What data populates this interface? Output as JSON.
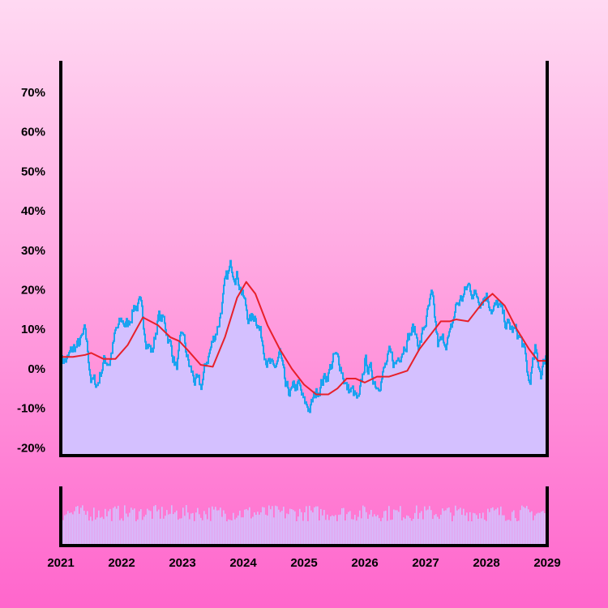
{
  "chart_data": {
    "type": "line",
    "title": "",
    "xlabel": "",
    "ylabel": "",
    "x_ticks": [
      "2021",
      "2022",
      "2023",
      "2024",
      "2025",
      "2026",
      "2027",
      "2028",
      "2029"
    ],
    "x_range": [
      2021,
      2029
    ],
    "y_ticks": [
      "-20%",
      "-10%",
      "0%",
      "10%",
      "20%",
      "30%",
      "40%",
      "50%",
      "60%",
      "70%"
    ],
    "ylim": [
      -22,
      78
    ],
    "grid": false,
    "legend": "none",
    "colors": {
      "background_top": "#ffd9f2",
      "background_bottom": "#ff66cc",
      "area_fill": "#d4c0ff",
      "series_line": "#1aa3f0",
      "moving_average": "#e8202a",
      "volume_bars": "#d4c0ff"
    },
    "series": [
      {
        "role": "values",
        "points": [
          [
            2021.0,
            3
          ],
          [
            2021.1,
            2
          ],
          [
            2021.2,
            5
          ],
          [
            2021.3,
            6
          ],
          [
            2021.4,
            9
          ],
          [
            2021.5,
            -3
          ],
          [
            2021.6,
            -4
          ],
          [
            2021.7,
            2
          ],
          [
            2021.8,
            2
          ],
          [
            2021.9,
            9
          ],
          [
            2022.0,
            12
          ],
          [
            2022.1,
            11
          ],
          [
            2022.2,
            16
          ],
          [
            2022.3,
            16
          ],
          [
            2022.4,
            8
          ],
          [
            2022.5,
            4
          ],
          [
            2022.6,
            13
          ],
          [
            2022.7,
            12
          ],
          [
            2022.8,
            6
          ],
          [
            2022.9,
            0
          ],
          [
            2023.0,
            9
          ],
          [
            2023.1,
            1
          ],
          [
            2023.2,
            -3
          ],
          [
            2023.3,
            -5
          ],
          [
            2023.4,
            2
          ],
          [
            2023.5,
            7
          ],
          [
            2023.6,
            12
          ],
          [
            2023.7,
            21
          ],
          [
            2023.8,
            26
          ],
          [
            2023.9,
            24
          ],
          [
            2024.0,
            18
          ],
          [
            2024.1,
            12
          ],
          [
            2024.2,
            14
          ],
          [
            2024.3,
            8
          ],
          [
            2024.4,
            2
          ],
          [
            2024.5,
            -1
          ],
          [
            2024.6,
            4
          ],
          [
            2024.7,
            -6
          ],
          [
            2024.8,
            -6
          ],
          [
            2024.9,
            -4
          ],
          [
            2025.0,
            -9
          ],
          [
            2025.1,
            -10
          ],
          [
            2025.2,
            -6
          ],
          [
            2025.3,
            -3
          ],
          [
            2025.4,
            -1
          ],
          [
            2025.5,
            3
          ],
          [
            2025.6,
            1
          ],
          [
            2025.7,
            -5
          ],
          [
            2025.8,
            -6
          ],
          [
            2025.9,
            -9
          ],
          [
            2026.0,
            2
          ],
          [
            2026.1,
            -1
          ],
          [
            2026.2,
            -4
          ],
          [
            2026.3,
            -1
          ],
          [
            2026.4,
            3
          ],
          [
            2026.5,
            1
          ],
          [
            2026.6,
            5
          ],
          [
            2026.7,
            8
          ],
          [
            2026.8,
            10
          ],
          [
            2026.9,
            6
          ],
          [
            2027.0,
            12
          ],
          [
            2027.1,
            18
          ],
          [
            2027.2,
            6
          ],
          [
            2027.3,
            7
          ],
          [
            2027.4,
            8
          ],
          [
            2027.5,
            16
          ],
          [
            2027.6,
            18
          ],
          [
            2027.7,
            21
          ],
          [
            2027.8,
            19
          ],
          [
            2027.9,
            18
          ],
          [
            2028.0,
            19
          ],
          [
            2028.1,
            15
          ],
          [
            2028.2,
            16
          ],
          [
            2028.3,
            12
          ],
          [
            2028.4,
            10
          ],
          [
            2028.5,
            9
          ],
          [
            2028.6,
            6
          ],
          [
            2028.7,
            -4
          ],
          [
            2028.8,
            4
          ],
          [
            2028.9,
            -1
          ],
          [
            2029.0,
            5
          ]
        ]
      },
      {
        "role": "moving_average",
        "points": [
          [
            2021.0,
            3
          ],
          [
            2021.2,
            3
          ],
          [
            2021.4,
            3.5
          ],
          [
            2021.5,
            4
          ],
          [
            2021.7,
            2.5
          ],
          [
            2021.9,
            2.5
          ],
          [
            2022.1,
            6
          ],
          [
            2022.35,
            13
          ],
          [
            2022.6,
            11
          ],
          [
            2022.8,
            8
          ],
          [
            2022.95,
            7
          ],
          [
            2023.1,
            4.5
          ],
          [
            2023.3,
            1
          ],
          [
            2023.5,
            0.5
          ],
          [
            2023.7,
            8
          ],
          [
            2023.9,
            18
          ],
          [
            2024.05,
            22
          ],
          [
            2024.2,
            19
          ],
          [
            2024.4,
            11
          ],
          [
            2024.6,
            5
          ],
          [
            2024.8,
            0
          ],
          [
            2025.0,
            -4
          ],
          [
            2025.2,
            -6.5
          ],
          [
            2025.4,
            -6.5
          ],
          [
            2025.55,
            -5
          ],
          [
            2025.7,
            -2.5
          ],
          [
            2025.85,
            -2.5
          ],
          [
            2026.0,
            -3.5
          ],
          [
            2026.2,
            -2
          ],
          [
            2026.4,
            -2
          ],
          [
            2026.5,
            -1.5
          ],
          [
            2026.7,
            -0.5
          ],
          [
            2026.9,
            5
          ],
          [
            2027.1,
            9
          ],
          [
            2027.25,
            12
          ],
          [
            2027.4,
            12
          ],
          [
            2027.5,
            12.5
          ],
          [
            2027.7,
            12
          ],
          [
            2027.8,
            14
          ],
          [
            2027.95,
            17
          ],
          [
            2028.1,
            19
          ],
          [
            2028.3,
            16
          ],
          [
            2028.5,
            10
          ],
          [
            2028.7,
            5
          ],
          [
            2028.85,
            2
          ],
          [
            2029.0,
            2
          ]
        ]
      }
    ]
  }
}
